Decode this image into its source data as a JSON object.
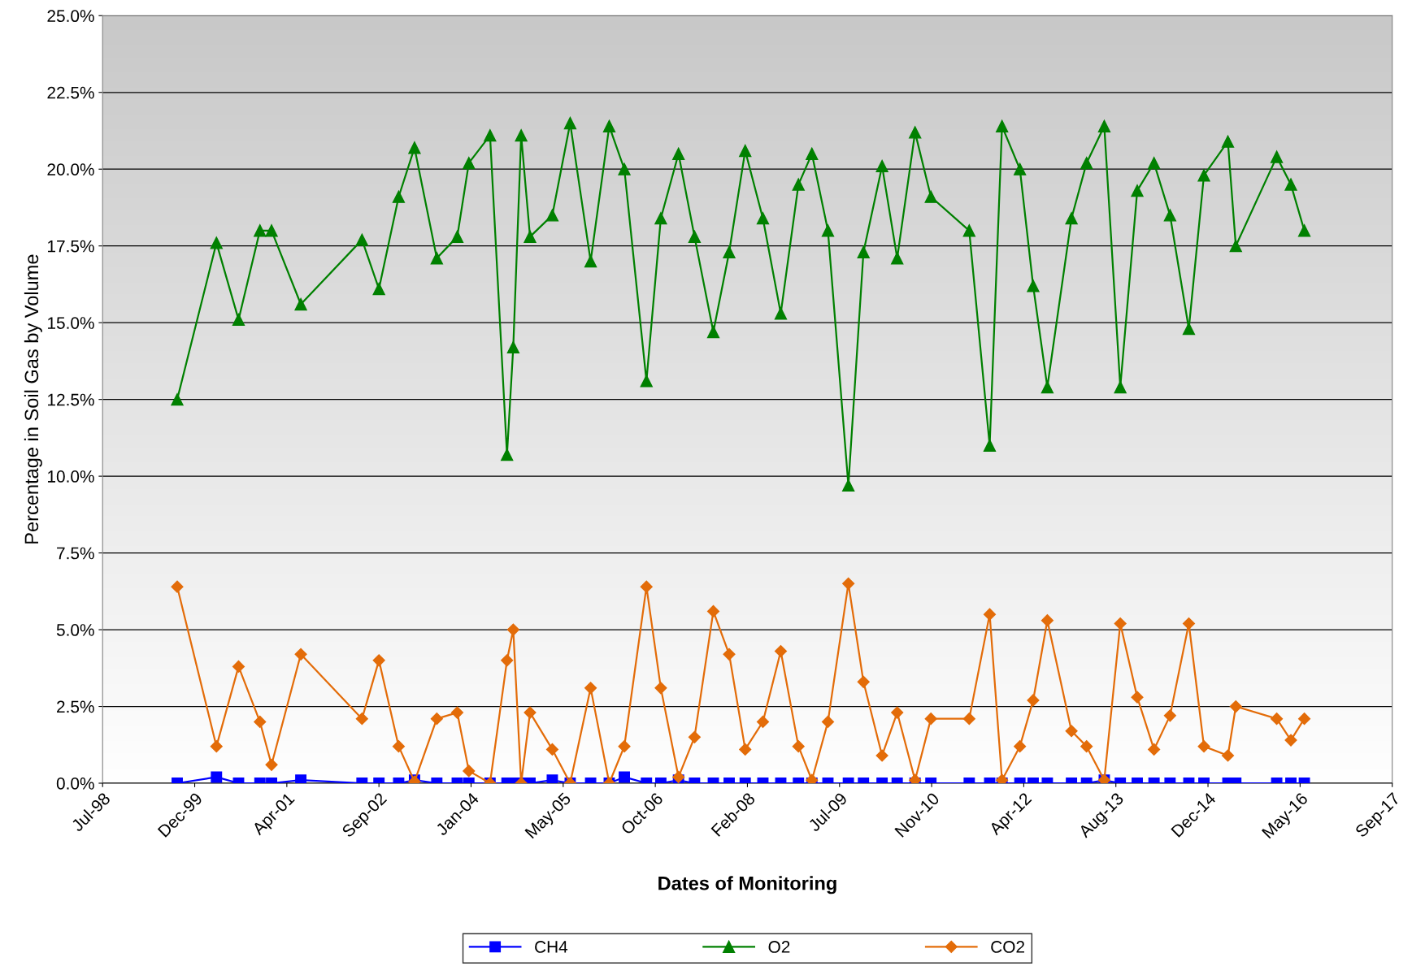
{
  "chart_data": {
    "type": "line",
    "xlabel": "Dates of Monitoring",
    "ylabel": "Percentage in Soil Gas by Volume",
    "x": [
      "1999-09-03",
      "2000-04-03",
      "2000-08-01",
      "2000-11-25",
      "2001-01-27",
      "2001-07-05",
      "2002-06-02",
      "2002-09-02",
      "2002-12-18",
      "2003-03-14",
      "2003-07-13",
      "2003-11-01",
      "2004-01-03",
      "2004-04-27",
      "2004-07-28",
      "2004-08-31",
      "2004-10-13",
      "2004-11-30",
      "2005-03-31",
      "2005-07-06",
      "2005-10-25",
      "2006-02-03",
      "2006-04-26",
      "2006-08-24",
      "2006-11-10",
      "2007-02-14",
      "2007-05-12",
      "2007-08-22",
      "2007-11-16",
      "2008-02-11",
      "2008-05-17",
      "2008-08-22",
      "2008-11-26",
      "2009-02-07",
      "2009-05-05",
      "2009-08-24",
      "2009-11-14",
      "2010-02-23",
      "2010-05-16",
      "2010-08-21",
      "2010-11-15",
      "2011-06-11",
      "2011-09-30",
      "2011-12-06",
      "2012-03-12",
      "2012-05-23",
      "2012-08-08",
      "2012-12-17",
      "2013-03-09",
      "2013-06-13",
      "2013-09-08",
      "2013-12-09",
      "2014-03-10",
      "2014-06-05",
      "2014-09-15",
      "2014-12-06",
      "2015-04-15",
      "2015-05-28",
      "2016-01-05",
      "2016-03-22",
      "2016-06-03"
    ],
    "series": [
      {
        "name": "CH4",
        "color": "#0000ff",
        "marker": "square",
        "values": [
          0,
          0.2,
          0,
          0,
          0,
          0.1,
          0,
          0,
          0,
          0.1,
          0,
          0,
          0,
          0,
          0,
          0,
          0,
          0,
          0.1,
          0,
          0,
          0,
          0.2,
          0,
          0,
          0.1,
          0,
          0,
          0,
          0,
          0,
          0,
          0,
          0,
          0,
          0,
          0,
          0,
          0,
          0,
          0,
          0,
          0,
          0,
          0,
          0,
          0,
          0,
          0,
          0.1,
          0,
          0,
          0,
          0,
          0,
          0,
          0,
          0,
          0,
          0,
          0
        ]
      },
      {
        "name": "O2",
        "color": "#008000",
        "marker": "triangle",
        "values": [
          12.5,
          17.6,
          15.1,
          18.0,
          18.0,
          15.6,
          17.7,
          16.1,
          19.1,
          20.7,
          17.1,
          17.8,
          20.2,
          21.1,
          10.7,
          14.2,
          21.1,
          17.8,
          18.5,
          21.5,
          17.0,
          21.4,
          20.0,
          13.1,
          18.4,
          20.5,
          17.8,
          14.7,
          17.3,
          20.6,
          18.4,
          15.3,
          19.5,
          20.5,
          18.0,
          9.7,
          17.3,
          20.1,
          17.1,
          21.2,
          19.1,
          18.0,
          11.0,
          21.4,
          20.0,
          16.2,
          12.9,
          18.4,
          20.2,
          21.4,
          12.9,
          19.3,
          20.2,
          18.5,
          14.8,
          19.8,
          20.9,
          17.5,
          20.4,
          19.5,
          18.0
        ]
      },
      {
        "name": "CO2",
        "color": "#e36c09",
        "marker": "diamond",
        "values": [
          6.4,
          1.2,
          3.8,
          2.0,
          0.6,
          4.2,
          2.1,
          4.0,
          1.2,
          0.05,
          2.1,
          2.3,
          0.4,
          0,
          4.0,
          5.0,
          0,
          2.3,
          1.1,
          0,
          3.1,
          0,
          1.2,
          6.4,
          3.1,
          0.2,
          1.5,
          5.6,
          4.2,
          1.1,
          2.0,
          4.3,
          1.2,
          0.1,
          2.0,
          6.5,
          3.3,
          0.9,
          2.3,
          0.1,
          2.1,
          2.1,
          5.5,
          0.1,
          1.2,
          2.7,
          5.3,
          1.7,
          1.2,
          0.1,
          5.2,
          2.8,
          1.1,
          2.2,
          5.2,
          1.2,
          0.9,
          2.5,
          2.1,
          1.4,
          2.1
        ]
      }
    ],
    "xlim": [
      "1998-07-25",
      "2017-09-23"
    ],
    "xticks": [
      {
        "value": "1998-07-25",
        "label": "Jul-98"
      },
      {
        "value": "1999-12-07",
        "label": "Dec-99"
      },
      {
        "value": "2001-04-20",
        "label": "Apr-01"
      },
      {
        "value": "2002-09-02",
        "label": "Sep-02"
      },
      {
        "value": "2004-01-15",
        "label": "Jan-04"
      },
      {
        "value": "2005-05-29",
        "label": "May-05"
      },
      {
        "value": "2006-10-11",
        "label": "Oct-06"
      },
      {
        "value": "2008-02-23",
        "label": "Feb-08"
      },
      {
        "value": "2009-07-07",
        "label": "Jul-09"
      },
      {
        "value": "2010-11-19",
        "label": "Nov-10"
      },
      {
        "value": "2012-04-02",
        "label": "Apr-12"
      },
      {
        "value": "2013-08-15",
        "label": "Aug-13"
      },
      {
        "value": "2014-12-28",
        "label": "Dec-14"
      },
      {
        "value": "2016-05-11",
        "label": "May-16"
      },
      {
        "value": "2017-09-23",
        "label": "Sep-17"
      }
    ],
    "ylim": [
      0,
      25
    ],
    "yticks": [
      {
        "value": 0,
        "label": "0.0%"
      },
      {
        "value": 2.5,
        "label": "2.5%"
      },
      {
        "value": 5,
        "label": "5.0%"
      },
      {
        "value": 7.5,
        "label": "7.5%"
      },
      {
        "value": 10,
        "label": "10.0%"
      },
      {
        "value": 12.5,
        "label": "12.5%"
      },
      {
        "value": 15,
        "label": "15.0%"
      },
      {
        "value": 17.5,
        "label": "17.5%"
      },
      {
        "value": 20,
        "label": "20.0%"
      },
      {
        "value": 22.5,
        "label": "22.5%"
      },
      {
        "value": 25,
        "label": "25.0%"
      }
    ],
    "grid": "y",
    "legend": "bottom",
    "line_style": "solid"
  }
}
